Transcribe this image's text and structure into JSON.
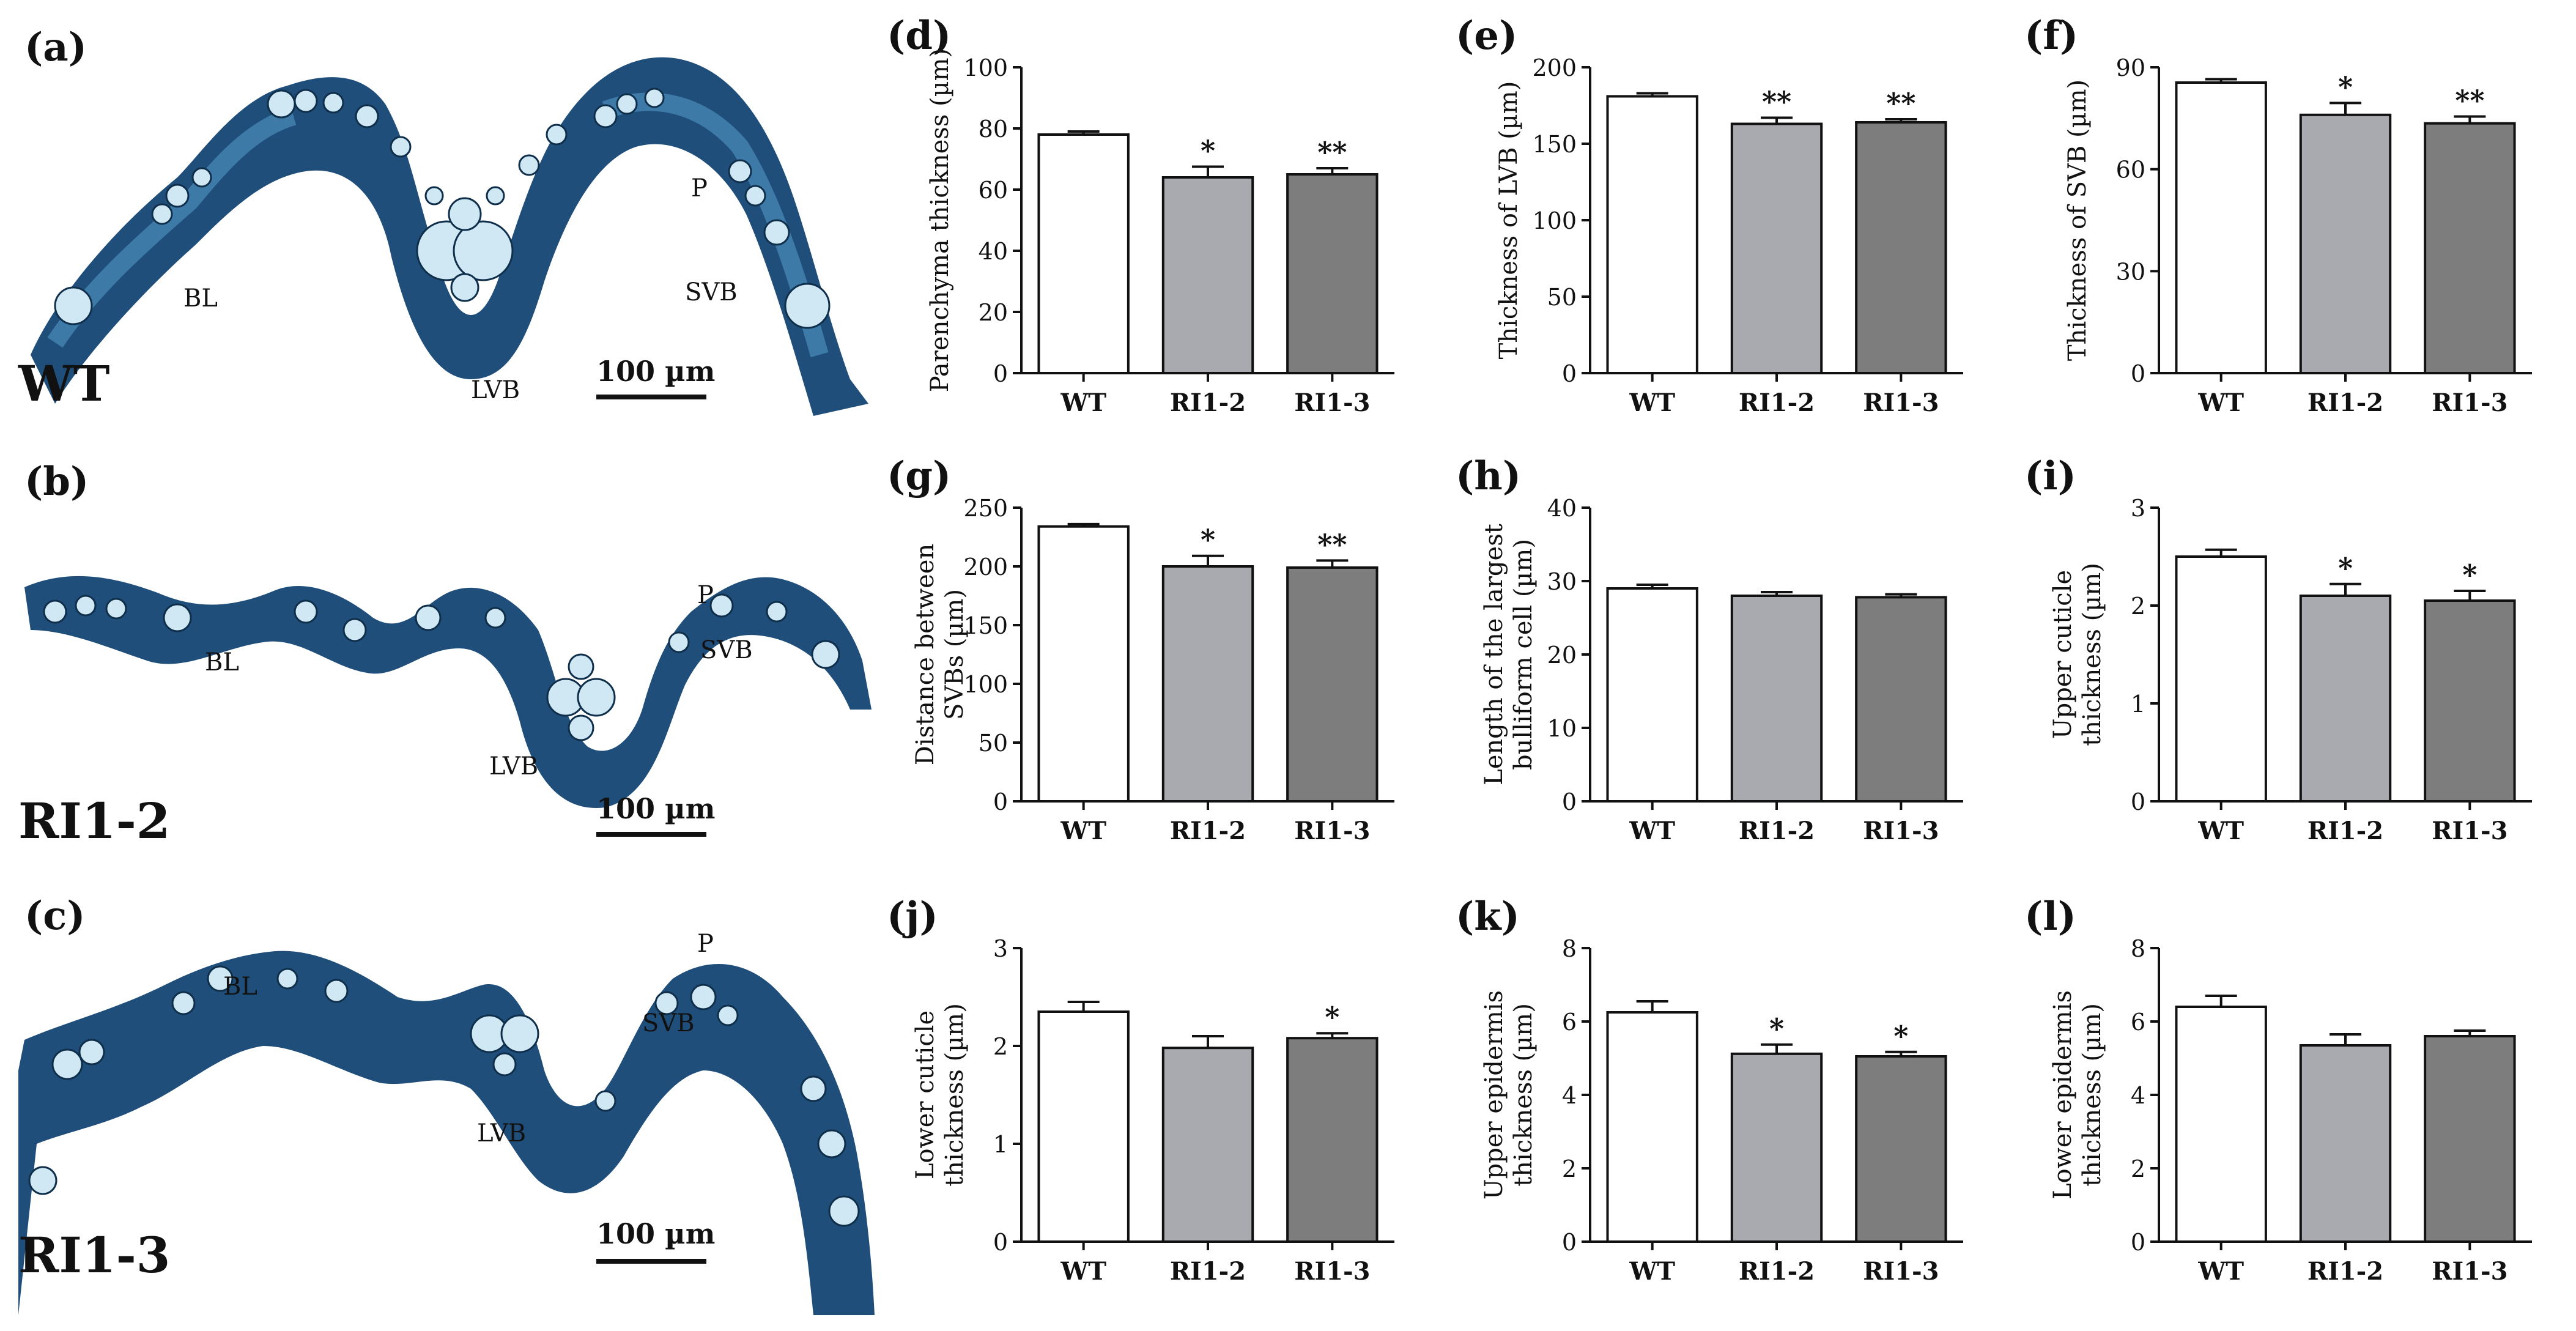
{
  "micrographs": [
    {
      "panel": "(a)",
      "genotype": "WT",
      "labels": [
        "BL",
        "LVB",
        "P",
        "SVB"
      ],
      "scale": "100 µm"
    },
    {
      "panel": "(b)",
      "genotype": "RI1-2",
      "labels": [
        "BL",
        "LVB",
        "P",
        "SVB"
      ],
      "scale": "100 µm"
    },
    {
      "panel": "(c)",
      "genotype": "RI1-3",
      "labels": [
        "BL",
        "LVB",
        "P",
        "SVB"
      ],
      "scale": "100 µm"
    }
  ],
  "colors": {
    "tissue_dark": "#1f4e7a",
    "tissue_mid": "#3d7aa8",
    "cell_light": "#cfe8f3",
    "bar_wt": "#ffffff",
    "bar_ri12": "#a9a9b0",
    "bar_ri13": "#7d7d7d"
  },
  "chart_data": [
    {
      "panel": "(d)",
      "type": "bar",
      "categories": [
        "WT",
        "RI1-2",
        "RI1-3"
      ],
      "values": [
        78,
        64,
        65
      ],
      "errors": [
        1,
        3.5,
        2
      ],
      "sig": [
        "",
        "*",
        "**"
      ],
      "ylabel": [
        "Parenchyma thickness (µm)"
      ],
      "ylim": [
        0,
        100
      ],
      "yticks": [
        0,
        20,
        40,
        60,
        80,
        100
      ]
    },
    {
      "panel": "(e)",
      "type": "bar",
      "categories": [
        "WT",
        "RI1-2",
        "RI1-3"
      ],
      "values": [
        181,
        163,
        164
      ],
      "errors": [
        2,
        4,
        2
      ],
      "sig": [
        "",
        "**",
        "**"
      ],
      "ylabel": [
        "Thickness of LVB (µm)"
      ],
      "ylim": [
        0,
        200
      ],
      "yticks": [
        0,
        50,
        100,
        150,
        200
      ]
    },
    {
      "panel": "(f)",
      "type": "bar",
      "categories": [
        "WT",
        "RI1-2",
        "RI1-3"
      ],
      "values": [
        85.5,
        76,
        73.5
      ],
      "errors": [
        1,
        3.5,
        2
      ],
      "sig": [
        "",
        "*",
        "**"
      ],
      "ylabel": [
        "Thickness of SVB (µm)"
      ],
      "ylim": [
        0,
        90
      ],
      "yticks": [
        0,
        30,
        60,
        90
      ]
    },
    {
      "panel": "(g)",
      "type": "bar",
      "categories": [
        "WT",
        "RI1-2",
        "RI1-3"
      ],
      "values": [
        234,
        200,
        199
      ],
      "errors": [
        2,
        9,
        6
      ],
      "sig": [
        "",
        "*",
        "**"
      ],
      "ylabel": [
        "Distance between",
        "SVBs (µm)"
      ],
      "ylim": [
        0,
        250
      ],
      "yticks": [
        0,
        50,
        100,
        150,
        200,
        250
      ]
    },
    {
      "panel": "(h)",
      "type": "bar",
      "categories": [
        "WT",
        "RI1-2",
        "RI1-3"
      ],
      "values": [
        29,
        28,
        27.8
      ],
      "errors": [
        0.5,
        0.5,
        0.4
      ],
      "sig": [
        "",
        "",
        ""
      ],
      "ylabel": [
        "Length of the largest",
        "bulliform cell (µm)"
      ],
      "ylim": [
        0,
        40
      ],
      "yticks": [
        0,
        10,
        20,
        30,
        40
      ]
    },
    {
      "panel": "(i)",
      "type": "bar",
      "categories": [
        "WT",
        "RI1-2",
        "RI1-3"
      ],
      "values": [
        2.5,
        2.1,
        2.05
      ],
      "errors": [
        0.07,
        0.12,
        0.1
      ],
      "sig": [
        "",
        "*",
        "*"
      ],
      "ylabel": [
        "Upper cuticle",
        "thickness (µm)"
      ],
      "ylim": [
        0,
        3
      ],
      "yticks": [
        0,
        1,
        2,
        3
      ]
    },
    {
      "panel": "(j)",
      "type": "bar",
      "categories": [
        "WT",
        "RI1-2",
        "RI1-3"
      ],
      "values": [
        2.35,
        1.98,
        2.08
      ],
      "errors": [
        0.1,
        0.12,
        0.05
      ],
      "sig": [
        "",
        "",
        "*"
      ],
      "ylabel": [
        "Lower cuticle",
        "thickness (µm)"
      ],
      "ylim": [
        0,
        3
      ],
      "yticks": [
        0,
        1,
        2,
        3
      ]
    },
    {
      "panel": "(k)",
      "type": "bar",
      "categories": [
        "WT",
        "RI1-2",
        "RI1-3"
      ],
      "values": [
        6.25,
        5.12,
        5.05
      ],
      "errors": [
        0.3,
        0.25,
        0.12
      ],
      "sig": [
        "",
        "*",
        "*"
      ],
      "ylabel": [
        "Upper epidermis",
        "thickness (µm)"
      ],
      "ylim": [
        0,
        8
      ],
      "yticks": [
        0,
        2,
        4,
        6,
        8
      ]
    },
    {
      "panel": "(l)",
      "type": "bar",
      "categories": [
        "WT",
        "RI1-2",
        "RI1-3"
      ],
      "values": [
        6.4,
        5.35,
        5.6
      ],
      "errors": [
        0.3,
        0.3,
        0.15
      ],
      "sig": [
        "",
        "",
        ""
      ],
      "ylabel": [
        "Lower epidermis",
        "thickness (µm)"
      ],
      "ylim": [
        0,
        8
      ],
      "yticks": [
        0,
        2,
        4,
        6,
        8
      ]
    }
  ]
}
